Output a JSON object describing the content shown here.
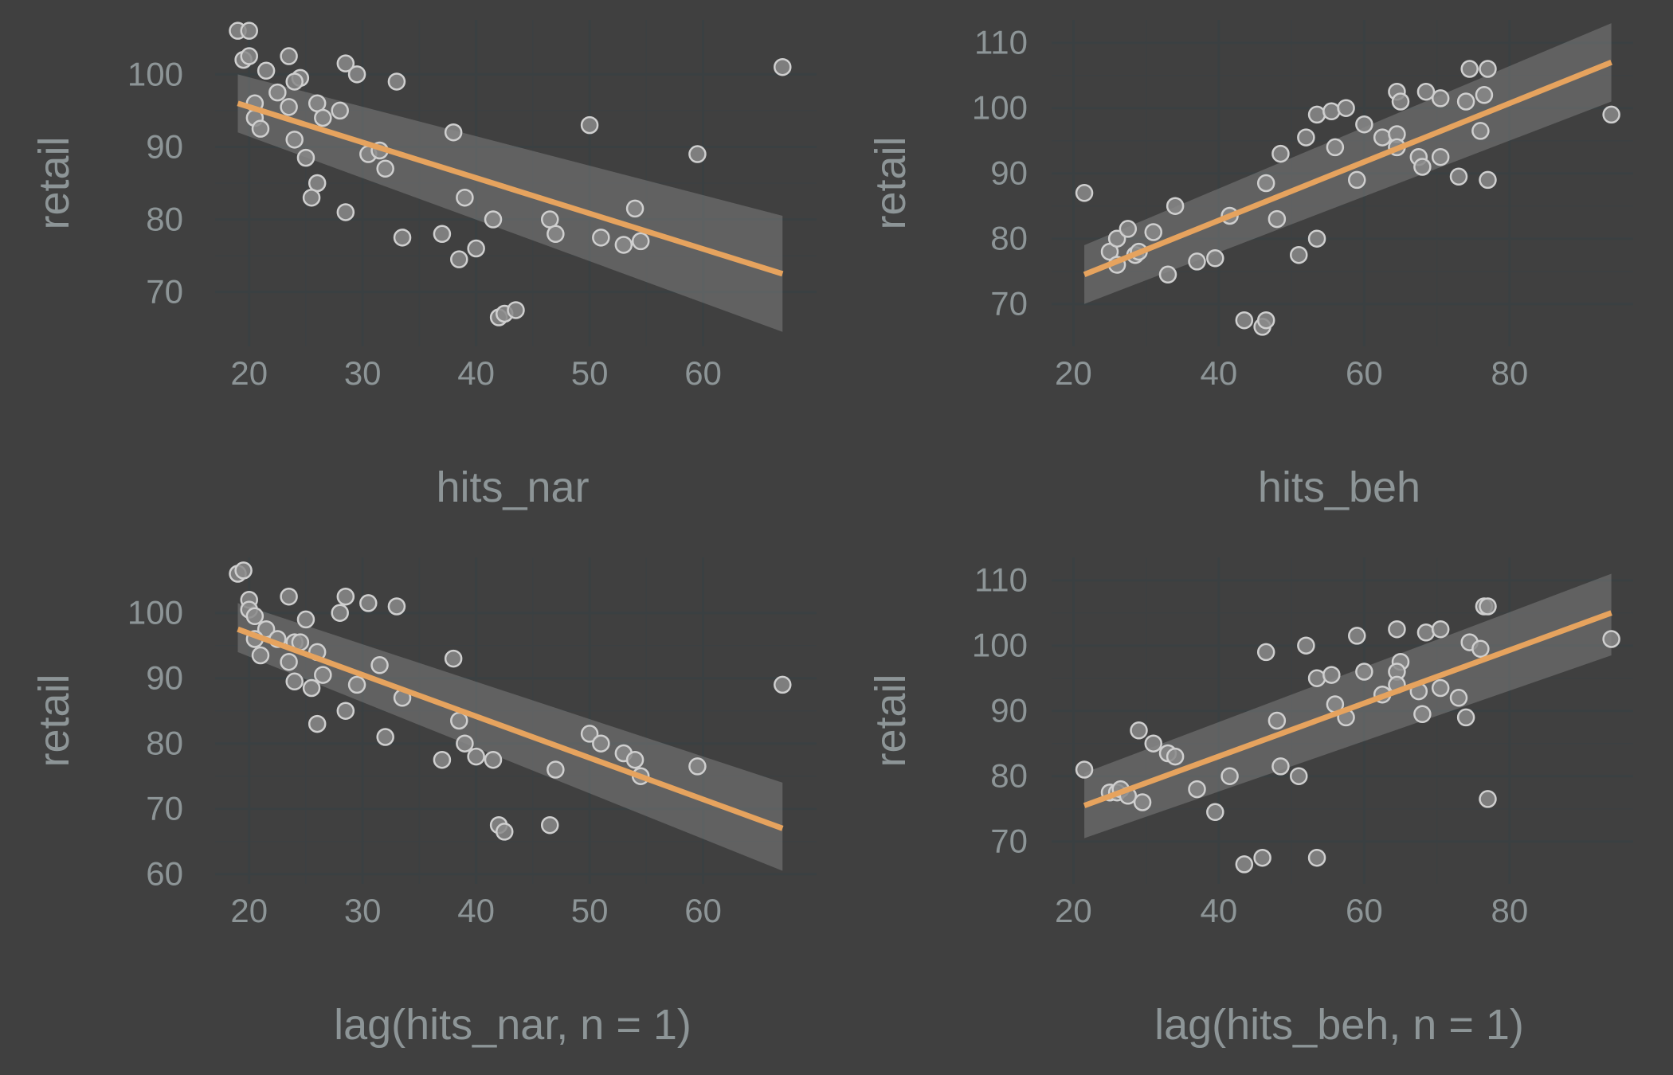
{
  "chart_data": [
    {
      "type": "scatter",
      "xlabel": "hits_nar",
      "ylabel": "retail",
      "xlim": [
        17,
        70
      ],
      "ylim": [
        62.5,
        107.5
      ],
      "x_ticks": [
        20,
        30,
        40,
        50,
        60
      ],
      "y_ticks": [
        70,
        80,
        90,
        100
      ],
      "grid": true,
      "fit": {
        "x0": 19,
        "y0": 96,
        "x1": 67,
        "y1": 72.5,
        "se_lo0": 92,
        "se_hi0": 100,
        "se_lo1": 64.5,
        "se_hi1": 80.5
      },
      "points": [
        [
          19,
          106
        ],
        [
          20,
          106
        ],
        [
          19.5,
          102
        ],
        [
          20,
          102.5
        ],
        [
          21.5,
          100.5
        ],
        [
          23.5,
          102.5
        ],
        [
          24.5,
          99.5
        ],
        [
          24,
          99
        ],
        [
          22.5,
          97.5
        ],
        [
          20.5,
          96
        ],
        [
          23.5,
          95.5
        ],
        [
          20.5,
          94
        ],
        [
          21,
          92.5
        ],
        [
          24,
          91
        ],
        [
          25,
          88.5
        ],
        [
          26,
          96
        ],
        [
          26.5,
          94
        ],
        [
          28,
          95
        ],
        [
          28.5,
          101.5
        ],
        [
          29.5,
          100
        ],
        [
          33,
          99
        ],
        [
          26,
          85
        ],
        [
          25.5,
          83
        ],
        [
          28.5,
          81
        ],
        [
          30.5,
          89
        ],
        [
          31.5,
          89.5
        ],
        [
          32,
          87
        ],
        [
          33.5,
          77.5
        ],
        [
          37,
          78
        ],
        [
          38,
          92
        ],
        [
          38.5,
          74.5
        ],
        [
          39,
          83
        ],
        [
          40,
          76
        ],
        [
          41.5,
          80
        ],
        [
          42,
          66.5
        ],
        [
          42.5,
          67
        ],
        [
          43.5,
          67.5
        ],
        [
          46.5,
          80
        ],
        [
          47,
          78
        ],
        [
          50,
          93
        ],
        [
          51,
          77.5
        ],
        [
          53,
          76.5
        ],
        [
          54,
          81.5
        ],
        [
          54.5,
          77
        ],
        [
          59.5,
          89
        ],
        [
          67,
          101
        ]
      ]
    },
    {
      "type": "scatter",
      "xlabel": "hits_beh",
      "ylabel": "retail",
      "xlim": [
        17,
        97
      ],
      "ylim": [
        63.5,
        113.5
      ],
      "x_ticks": [
        20,
        40,
        60,
        80
      ],
      "y_ticks": [
        70,
        80,
        90,
        100,
        110
      ],
      "grid": true,
      "fit": {
        "x0": 21.5,
        "y0": 74.5,
        "x1": 94,
        "y1": 107,
        "se_lo0": 70,
        "se_hi0": 79,
        "se_lo1": 101,
        "se_hi1": 113
      },
      "points": [
        [
          21.5,
          87
        ],
        [
          25,
          78
        ],
        [
          26,
          80
        ],
        [
          26,
          76
        ],
        [
          27.5,
          81.5
        ],
        [
          28.5,
          77.5
        ],
        [
          29,
          78
        ],
        [
          31,
          81
        ],
        [
          33,
          74.5
        ],
        [
          34,
          85
        ],
        [
          37,
          76.5
        ],
        [
          39.5,
          77
        ],
        [
          41.5,
          83.5
        ],
        [
          43.5,
          67.5
        ],
        [
          46,
          66.5
        ],
        [
          46.5,
          67.5
        ],
        [
          46.5,
          88.5
        ],
        [
          48,
          83
        ],
        [
          48.5,
          93
        ],
        [
          51,
          77.5
        ],
        [
          52,
          95.5
        ],
        [
          53.5,
          99
        ],
        [
          53.5,
          80
        ],
        [
          55.5,
          99.5
        ],
        [
          56,
          94
        ],
        [
          57.5,
          100
        ],
        [
          59,
          89
        ],
        [
          60,
          97.5
        ],
        [
          62.5,
          95.5
        ],
        [
          64.5,
          102.5
        ],
        [
          65,
          101
        ],
        [
          64.5,
          96
        ],
        [
          64.5,
          94
        ],
        [
          67.5,
          92.5
        ],
        [
          68,
          91
        ],
        [
          68.5,
          102.5
        ],
        [
          70.5,
          101.5
        ],
        [
          70.5,
          92.5
        ],
        [
          73,
          89.5
        ],
        [
          74,
          101
        ],
        [
          74.5,
          106
        ],
        [
          76,
          96.5
        ],
        [
          76.5,
          102
        ],
        [
          77,
          106
        ],
        [
          77,
          89
        ],
        [
          94,
          99
        ]
      ]
    },
    {
      "type": "scatter",
      "xlabel": "lag(hits_nar, n = 1)",
      "ylabel": "retail",
      "xlim": [
        17,
        70
      ],
      "ylim": [
        58.5,
        108.5
      ],
      "x_ticks": [
        20,
        30,
        40,
        50,
        60
      ],
      "y_ticks": [
        60,
        70,
        80,
        90,
        100
      ],
      "grid": true,
      "fit": {
        "x0": 19,
        "y0": 97.5,
        "x1": 67,
        "y1": 67,
        "se_lo0": 94,
        "se_hi0": 101.5,
        "se_lo1": 60.5,
        "se_hi1": 74
      },
      "points": [
        [
          19,
          106
        ],
        [
          19.5,
          106.5
        ],
        [
          20,
          102
        ],
        [
          20,
          100.5
        ],
        [
          20.5,
          99.5
        ],
        [
          21.5,
          97.5
        ],
        [
          20.5,
          96
        ],
        [
          21,
          93.5
        ],
        [
          22.5,
          96
        ],
        [
          23.5,
          102.5
        ],
        [
          24,
          95.5
        ],
        [
          24.5,
          95.5
        ],
        [
          23.5,
          92.5
        ],
        [
          24,
          89.5
        ],
        [
          25,
          99
        ],
        [
          25.5,
          88.5
        ],
        [
          26,
          94
        ],
        [
          26.5,
          90.5
        ],
        [
          26,
          83
        ],
        [
          28,
          100
        ],
        [
          28.5,
          102.5
        ],
        [
          28.5,
          85
        ],
        [
          29.5,
          89
        ],
        [
          30.5,
          101.5
        ],
        [
          31.5,
          92
        ],
        [
          32,
          81
        ],
        [
          33,
          101
        ],
        [
          33.5,
          87
        ],
        [
          37,
          77.5
        ],
        [
          38,
          93
        ],
        [
          38.5,
          83.5
        ],
        [
          39,
          80
        ],
        [
          40,
          78
        ],
        [
          41.5,
          77.5
        ],
        [
          42,
          67.5
        ],
        [
          42.5,
          66.5
        ],
        [
          46.5,
          67.5
        ],
        [
          47,
          76
        ],
        [
          50,
          81.5
        ],
        [
          51,
          80
        ],
        [
          53,
          78.5
        ],
        [
          54,
          77.5
        ],
        [
          54.5,
          75
        ],
        [
          59.5,
          76.5
        ],
        [
          67,
          89
        ]
      ]
    },
    {
      "type": "scatter",
      "xlabel": "lag(hits_beh, n = 1)",
      "ylabel": "retail",
      "xlim": [
        17,
        97
      ],
      "ylim": [
        63.5,
        113.5
      ],
      "x_ticks": [
        20,
        40,
        60,
        80
      ],
      "y_ticks": [
        70,
        80,
        90,
        100,
        110
      ],
      "grid": true,
      "fit": {
        "x0": 21.5,
        "y0": 75.5,
        "x1": 94,
        "y1": 105,
        "se_lo0": 70.5,
        "se_hi0": 80.5,
        "se_lo1": 98.5,
        "se_hi1": 111
      },
      "points": [
        [
          21.5,
          81
        ],
        [
          25,
          77.5
        ],
        [
          26,
          77.5
        ],
        [
          26.5,
          78
        ],
        [
          27.5,
          77
        ],
        [
          29,
          87
        ],
        [
          29.5,
          76
        ],
        [
          31,
          85
        ],
        [
          33,
          83.5
        ],
        [
          34,
          83
        ],
        [
          37,
          78
        ],
        [
          39.5,
          74.5
        ],
        [
          41.5,
          80
        ],
        [
          43.5,
          66.5
        ],
        [
          46,
          67.5
        ],
        [
          46.5,
          99
        ],
        [
          48,
          88.5
        ],
        [
          48.5,
          81.5
        ],
        [
          51,
          80
        ],
        [
          52,
          100
        ],
        [
          53.5,
          95
        ],
        [
          53.5,
          67.5
        ],
        [
          55.5,
          95.5
        ],
        [
          56,
          91
        ],
        [
          57.5,
          89
        ],
        [
          59,
          101.5
        ],
        [
          60,
          96
        ],
        [
          62.5,
          92.5
        ],
        [
          64.5,
          102.5
        ],
        [
          65,
          97.5
        ],
        [
          64.5,
          96
        ],
        [
          64.5,
          94
        ],
        [
          67.5,
          93
        ],
        [
          68,
          89.5
        ],
        [
          68.5,
          102
        ],
        [
          70.5,
          102.5
        ],
        [
          70.5,
          93.5
        ],
        [
          73,
          92
        ],
        [
          74,
          89
        ],
        [
          74.5,
          100.5
        ],
        [
          76,
          99.5
        ],
        [
          76.5,
          106
        ],
        [
          77,
          106
        ],
        [
          77,
          76.5
        ],
        [
          94,
          101
        ]
      ]
    }
  ]
}
